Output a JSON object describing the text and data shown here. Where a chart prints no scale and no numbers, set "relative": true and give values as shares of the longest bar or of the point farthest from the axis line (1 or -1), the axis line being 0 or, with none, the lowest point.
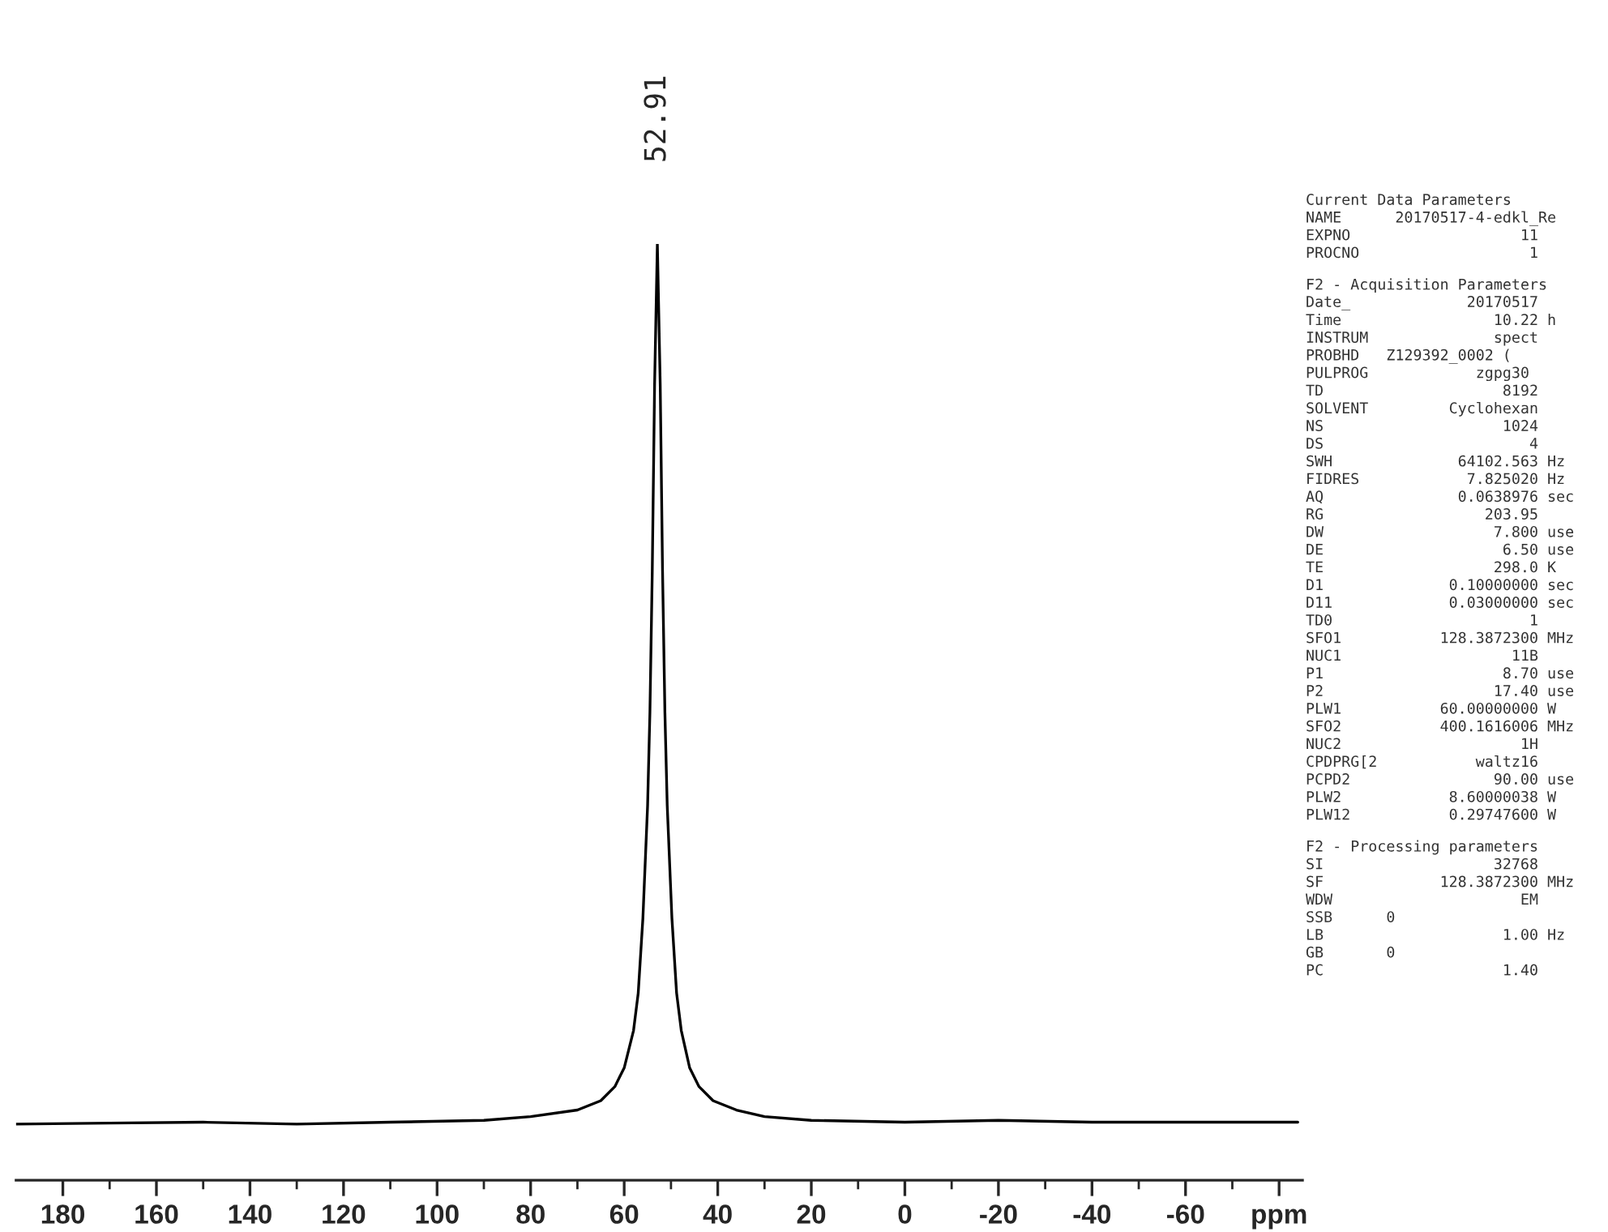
{
  "chart_data": {
    "type": "line",
    "relative": true,
    "xlim": [
      190,
      -85
    ],
    "xticks": [
      180,
      160,
      140,
      120,
      100,
      80,
      60,
      40,
      20,
      0,
      -20,
      -40,
      -60,
      {
        "value": -80,
        "label": "ppm"
      }
    ],
    "grid": false,
    "legend": false,
    "marker": "none",
    "line_style": "solid",
    "series": [
      {
        "color": "#000000",
        "x": [
          190,
          170,
          150,
          130,
          110,
          90,
          80,
          70,
          65,
          62,
          60,
          58,
          57,
          56,
          55,
          54.5,
          54,
          53.5,
          52.91,
          52.3,
          51.8,
          51.3,
          50.8,
          49.8,
          48.8,
          47.8,
          46,
          44,
          41,
          36,
          30,
          20,
          0,
          -20,
          -40,
          -60,
          -84
        ],
        "values": [
          0.06,
          0.061,
          0.062,
          0.06,
          0.062,
          0.064,
          0.068,
          0.075,
          0.085,
          0.1,
          0.12,
          0.16,
          0.2,
          0.28,
          0.4,
          0.5,
          0.65,
          0.85,
          1.0,
          0.85,
          0.65,
          0.5,
          0.4,
          0.28,
          0.2,
          0.16,
          0.12,
          0.1,
          0.085,
          0.075,
          0.068,
          0.064,
          0.062,
          0.064,
          0.062,
          0.062,
          0.062
        ]
      }
    ],
    "annotations": [
      {
        "text": "52.91",
        "x": 52.91,
        "y": 1.0
      },
      "Current Data Parameters",
      "NAME      20170517-4-edkl_Re",
      "EXPNO                   11",
      "PROCNO                   1",
      "F2 - Acquisition Parameters",
      "Date_             20170517",
      "Time                 10.22 h",
      "INSTRUM              spect",
      "PROBHD   Z129392_0002 (",
      "PULPROG            zgpg30",
      "TD                    8192",
      "SOLVENT         Cyclohexan",
      "NS                    1024",
      "DS                       4",
      "SWH              64102.563 Hz",
      "FIDRES            7.825020 Hz",
      "AQ               0.0638976 sec",
      "RG                  203.95",
      "DW                   7.800 use",
      "DE                    6.50 use",
      "TE                   298.0 K",
      "D1              0.10000000 sec",
      "D11             0.03000000 sec",
      "TD0                      1",
      "SFO1           128.3872300 MHz",
      "NUC1                   11B",
      "P1                    8.70 use",
      "P2                   17.40 use",
      "PLW1           60.00000000 W",
      "SFO2           400.1616006 MHz",
      "NUC2                    1H",
      "CPDPRG[2           waltz16",
      "PCPD2                90.00 use",
      "PLW2            8.60000038 W",
      "PLW12           0.29747600 W",
      "F2 - Processing parameters",
      "SI                   32768",
      "SF             128.3872300 MHz",
      "WDW                     EM",
      "SSB      0",
      "LB                    1.00 Hz",
      "GB       0",
      "PC                    1.40"
    ]
  }
}
